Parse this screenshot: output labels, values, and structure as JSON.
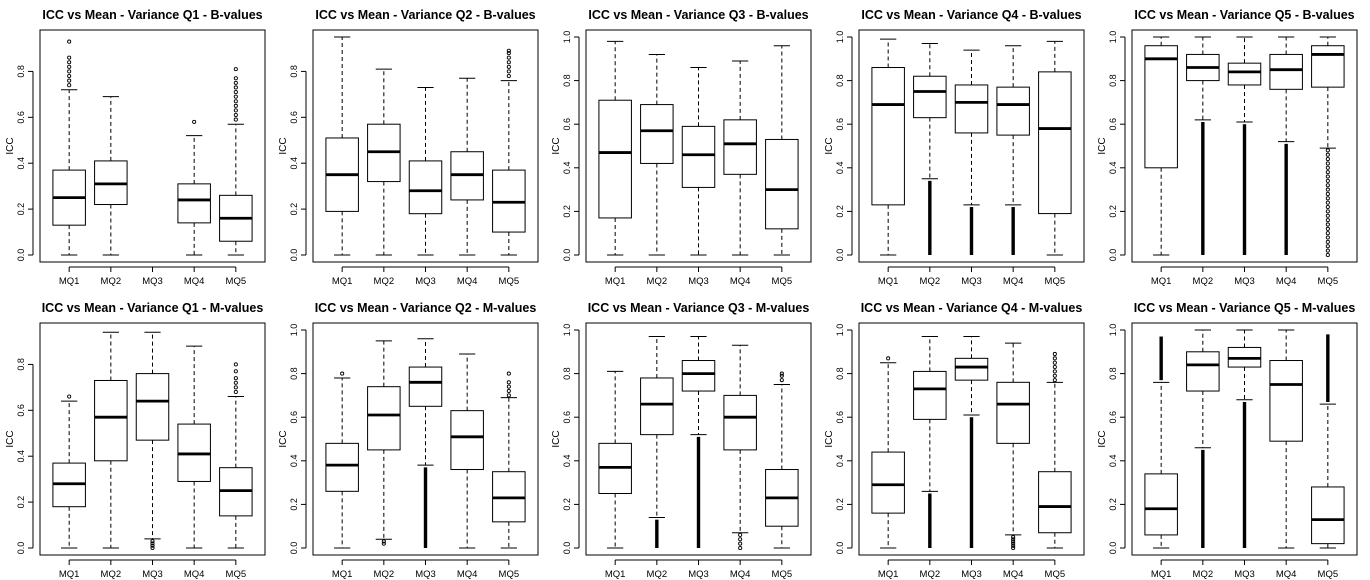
{
  "chart_data": [
    {
      "type": "boxplot",
      "title": "ICC vs Mean - Variance Q1 - B-values",
      "ylabel": "ICC",
      "ylim": [
        0,
        0.95
      ],
      "yticks": [
        0.0,
        0.2,
        0.4,
        0.6,
        0.8
      ],
      "categories": [
        "MQ1",
        "MQ2",
        "MQ3",
        "MQ4",
        "MQ5"
      ],
      "boxes": [
        {
          "label": "MQ1",
          "min": 0.0,
          "q1": 0.13,
          "median": 0.25,
          "q3": 0.37,
          "max": 0.72,
          "outliers": [
            0.74,
            0.76,
            0.78,
            0.8,
            0.82,
            0.84,
            0.86,
            0.93
          ]
        },
        {
          "label": "MQ2",
          "min": 0.0,
          "q1": 0.22,
          "median": 0.31,
          "q3": 0.41,
          "max": 0.69,
          "outliers": []
        },
        {
          "label": "MQ3",
          "empty": true
        },
        {
          "label": "MQ4",
          "min": 0.0,
          "q1": 0.14,
          "median": 0.24,
          "q3": 0.31,
          "max": 0.52,
          "outliers": [
            0.58
          ]
        },
        {
          "label": "MQ5",
          "min": 0.0,
          "q1": 0.06,
          "median": 0.16,
          "q3": 0.26,
          "max": 0.57,
          "outliers": [
            0.59,
            0.61,
            0.63,
            0.65,
            0.67,
            0.69,
            0.71,
            0.73,
            0.75,
            0.77,
            0.81
          ]
        }
      ]
    },
    {
      "type": "boxplot",
      "title": "ICC vs Mean - Variance Q2 - B-values",
      "ylabel": "ICC",
      "ylim": [
        0,
        0.95
      ],
      "yticks": [
        0.0,
        0.2,
        0.4,
        0.6,
        0.8
      ],
      "categories": [
        "MQ1",
        "MQ2",
        "MQ3",
        "MQ4",
        "MQ5"
      ],
      "boxes": [
        {
          "label": "MQ1",
          "min": 0.0,
          "q1": 0.19,
          "median": 0.35,
          "q3": 0.51,
          "max": 0.95,
          "outliers": []
        },
        {
          "label": "MQ2",
          "min": 0.0,
          "q1": 0.32,
          "median": 0.45,
          "q3": 0.57,
          "max": 0.81,
          "outliers": []
        },
        {
          "label": "MQ3",
          "min": 0.0,
          "q1": 0.18,
          "median": 0.28,
          "q3": 0.41,
          "max": 0.73,
          "outliers": []
        },
        {
          "label": "MQ4",
          "min": 0.0,
          "q1": 0.24,
          "median": 0.35,
          "q3": 0.45,
          "max": 0.77,
          "outliers": []
        },
        {
          "label": "MQ5",
          "min": 0.0,
          "q1": 0.1,
          "median": 0.23,
          "q3": 0.37,
          "max": 0.76,
          "outliers": [
            0.78,
            0.8,
            0.82,
            0.84,
            0.86,
            0.88,
            0.89
          ]
        }
      ]
    },
    {
      "type": "boxplot",
      "title": "ICC vs Mean - Variance Q3 - B-values",
      "ylabel": "ICC",
      "ylim": [
        0,
        1.0
      ],
      "yticks": [
        0.0,
        0.2,
        0.4,
        0.6,
        0.8,
        1.0
      ],
      "categories": [
        "MQ1",
        "MQ2",
        "MQ3",
        "MQ4",
        "MQ5"
      ],
      "boxes": [
        {
          "label": "MQ1",
          "min": 0.0,
          "q1": 0.17,
          "median": 0.47,
          "q3": 0.71,
          "max": 0.98,
          "outliers": []
        },
        {
          "label": "MQ2",
          "min": 0.0,
          "q1": 0.42,
          "median": 0.57,
          "q3": 0.69,
          "max": 0.92,
          "outliers": []
        },
        {
          "label": "MQ3",
          "min": 0.0,
          "q1": 0.31,
          "median": 0.46,
          "q3": 0.59,
          "max": 0.86,
          "outliers": []
        },
        {
          "label": "MQ4",
          "min": 0.0,
          "q1": 0.37,
          "median": 0.51,
          "q3": 0.62,
          "max": 0.89,
          "outliers": []
        },
        {
          "label": "MQ5",
          "min": 0.0,
          "q1": 0.12,
          "median": 0.3,
          "q3": 0.53,
          "max": 0.96,
          "outliers": []
        }
      ]
    },
    {
      "type": "boxplot",
      "title": "ICC vs Mean - Variance Q4 - B-values",
      "ylabel": "ICC",
      "ylim": [
        0,
        1.0
      ],
      "yticks": [
        0.0,
        0.2,
        0.4,
        0.6,
        0.8,
        1.0
      ],
      "categories": [
        "MQ1",
        "MQ2",
        "MQ3",
        "MQ4",
        "MQ5"
      ],
      "boxes": [
        {
          "label": "MQ1",
          "min": 0.0,
          "q1": 0.23,
          "median": 0.69,
          "q3": 0.86,
          "max": 0.99,
          "outliers": []
        },
        {
          "label": "MQ2",
          "min": 0.35,
          "q1": 0.63,
          "median": 0.75,
          "q3": 0.82,
          "max": 0.97,
          "outliers": [],
          "outlier_band": [
            0.0,
            0.34
          ]
        },
        {
          "label": "MQ3",
          "min": 0.23,
          "q1": 0.56,
          "median": 0.7,
          "q3": 0.78,
          "max": 0.94,
          "outliers": [],
          "outlier_band": [
            0.0,
            0.22
          ]
        },
        {
          "label": "MQ4",
          "min": 0.23,
          "q1": 0.55,
          "median": 0.69,
          "q3": 0.77,
          "max": 0.96,
          "outliers": [],
          "outlier_band": [
            0.0,
            0.22
          ]
        },
        {
          "label": "MQ5",
          "min": 0.0,
          "q1": 0.19,
          "median": 0.58,
          "q3": 0.84,
          "max": 0.98,
          "outliers": []
        }
      ]
    },
    {
      "type": "boxplot",
      "title": "ICC vs Mean - Variance Q5 - B-values",
      "ylabel": "ICC",
      "ylim": [
        0,
        1.0
      ],
      "yticks": [
        0.0,
        0.2,
        0.4,
        0.6,
        0.8,
        1.0
      ],
      "categories": [
        "MQ1",
        "MQ2",
        "MQ3",
        "MQ4",
        "MQ5"
      ],
      "boxes": [
        {
          "label": "MQ1",
          "min": 0.0,
          "q1": 0.4,
          "median": 0.9,
          "q3": 0.96,
          "max": 1.0,
          "outliers": []
        },
        {
          "label": "MQ2",
          "min": 0.62,
          "q1": 0.8,
          "median": 0.86,
          "q3": 0.92,
          "max": 1.0,
          "outliers": [],
          "outlier_band": [
            0.0,
            0.61
          ]
        },
        {
          "label": "MQ3",
          "min": 0.61,
          "q1": 0.78,
          "median": 0.84,
          "q3": 0.88,
          "max": 1.0,
          "outliers": [],
          "outlier_band": [
            0.0,
            0.6
          ]
        },
        {
          "label": "MQ4",
          "min": 0.52,
          "q1": 0.76,
          "median": 0.85,
          "q3": 0.92,
          "max": 1.0,
          "outliers": [],
          "outlier_band": [
            0.0,
            0.51
          ]
        },
        {
          "label": "MQ5",
          "min": 0.49,
          "q1": 0.77,
          "median": 0.92,
          "q3": 0.96,
          "max": 1.0,
          "outliers": [
            0.0,
            0.02,
            0.04,
            0.06,
            0.08,
            0.1,
            0.12,
            0.14,
            0.16,
            0.18,
            0.2,
            0.22,
            0.24,
            0.26,
            0.28,
            0.3,
            0.32,
            0.34,
            0.36,
            0.38,
            0.4,
            0.42,
            0.44,
            0.46,
            0.48
          ]
        }
      ]
    },
    {
      "type": "boxplot",
      "title": "ICC vs Mean - Variance Q1 - M-values",
      "ylabel": "ICC",
      "ylim": [
        0,
        0.95
      ],
      "yticks": [
        0.0,
        0.2,
        0.4,
        0.6,
        0.8
      ],
      "categories": [
        "MQ1",
        "MQ2",
        "MQ3",
        "MQ4",
        "MQ5"
      ],
      "boxes": [
        {
          "label": "MQ1",
          "min": 0.0,
          "q1": 0.18,
          "median": 0.28,
          "q3": 0.37,
          "max": 0.64,
          "outliers": [
            0.66
          ]
        },
        {
          "label": "MQ2",
          "min": 0.0,
          "q1": 0.38,
          "median": 0.57,
          "q3": 0.73,
          "max": 0.94,
          "outliers": []
        },
        {
          "label": "MQ3",
          "min": 0.04,
          "q1": 0.47,
          "median": 0.64,
          "q3": 0.76,
          "max": 0.94,
          "outliers": [
            0.0,
            0.01,
            0.02,
            0.03
          ]
        },
        {
          "label": "MQ4",
          "min": 0.0,
          "q1": 0.29,
          "median": 0.41,
          "q3": 0.54,
          "max": 0.88,
          "outliers": []
        },
        {
          "label": "MQ5",
          "min": 0.0,
          "q1": 0.14,
          "median": 0.25,
          "q3": 0.35,
          "max": 0.66,
          "outliers": [
            0.68,
            0.7,
            0.72,
            0.74,
            0.77,
            0.8
          ]
        }
      ]
    },
    {
      "type": "boxplot",
      "title": "ICC vs Mean - Variance Q2 - M-values",
      "ylabel": "ICC",
      "ylim": [
        0,
        1.0
      ],
      "yticks": [
        0.0,
        0.2,
        0.4,
        0.6,
        0.8,
        1.0
      ],
      "categories": [
        "MQ1",
        "MQ2",
        "MQ3",
        "MQ4",
        "MQ5"
      ],
      "boxes": [
        {
          "label": "MQ1",
          "min": 0.0,
          "q1": 0.26,
          "median": 0.38,
          "q3": 0.48,
          "max": 0.78,
          "outliers": [
            0.8
          ]
        },
        {
          "label": "MQ2",
          "min": 0.04,
          "q1": 0.45,
          "median": 0.61,
          "q3": 0.74,
          "max": 0.95,
          "outliers": [
            0.02,
            0.03
          ]
        },
        {
          "label": "MQ3",
          "min": 0.38,
          "q1": 0.65,
          "median": 0.76,
          "q3": 0.83,
          "max": 0.96,
          "outliers": [],
          "outlier_band": [
            0.0,
            0.37
          ]
        },
        {
          "label": "MQ4",
          "min": 0.0,
          "q1": 0.36,
          "median": 0.51,
          "q3": 0.63,
          "max": 0.89,
          "outliers": []
        },
        {
          "label": "MQ5",
          "min": 0.0,
          "q1": 0.12,
          "median": 0.23,
          "q3": 0.35,
          "max": 0.69,
          "outliers": [
            0.7,
            0.72,
            0.74,
            0.76,
            0.8
          ]
        }
      ]
    },
    {
      "type": "boxplot",
      "title": "ICC vs Mean - Variance Q3 - M-values",
      "ylabel": "ICC",
      "ylim": [
        0,
        1.0
      ],
      "yticks": [
        0.0,
        0.2,
        0.4,
        0.6,
        0.8,
        1.0
      ],
      "categories": [
        "MQ1",
        "MQ2",
        "MQ3",
        "MQ4",
        "MQ5"
      ],
      "boxes": [
        {
          "label": "MQ1",
          "min": 0.0,
          "q1": 0.25,
          "median": 0.37,
          "q3": 0.48,
          "max": 0.81,
          "outliers": []
        },
        {
          "label": "MQ2",
          "min": 0.14,
          "q1": 0.52,
          "median": 0.66,
          "q3": 0.78,
          "max": 0.97,
          "outliers": [],
          "outlier_band": [
            0.0,
            0.13
          ]
        },
        {
          "label": "MQ3",
          "min": 0.52,
          "q1": 0.72,
          "median": 0.8,
          "q3": 0.86,
          "max": 0.97,
          "outliers": [],
          "outlier_band": [
            0.0,
            0.51
          ]
        },
        {
          "label": "MQ4",
          "min": 0.07,
          "q1": 0.45,
          "median": 0.6,
          "q3": 0.7,
          "max": 0.93,
          "outliers": [
            0.0,
            0.02,
            0.04,
            0.06
          ]
        },
        {
          "label": "MQ5",
          "min": 0.0,
          "q1": 0.1,
          "median": 0.23,
          "q3": 0.36,
          "max": 0.75,
          "outliers": [
            0.77,
            0.79,
            0.8
          ]
        }
      ]
    },
    {
      "type": "boxplot",
      "title": "ICC vs Mean - Variance Q4 - M-values",
      "ylabel": "ICC",
      "ylim": [
        0,
        1.0
      ],
      "yticks": [
        0.0,
        0.2,
        0.4,
        0.6,
        0.8,
        1.0
      ],
      "categories": [
        "MQ1",
        "MQ2",
        "MQ3",
        "MQ4",
        "MQ5"
      ],
      "boxes": [
        {
          "label": "MQ1",
          "min": 0.0,
          "q1": 0.16,
          "median": 0.29,
          "q3": 0.44,
          "max": 0.85,
          "outliers": [
            0.87
          ]
        },
        {
          "label": "MQ2",
          "min": 0.26,
          "q1": 0.59,
          "median": 0.73,
          "q3": 0.81,
          "max": 0.97,
          "outliers": [],
          "outlier_band": [
            0.0,
            0.25
          ]
        },
        {
          "label": "MQ3",
          "min": 0.61,
          "q1": 0.77,
          "median": 0.83,
          "q3": 0.87,
          "max": 0.97,
          "outliers": [],
          "outlier_band": [
            0.0,
            0.6
          ]
        },
        {
          "label": "MQ4",
          "min": 0.06,
          "q1": 0.48,
          "median": 0.66,
          "q3": 0.76,
          "max": 0.94,
          "outliers": [
            0.0,
            0.01,
            0.02,
            0.03,
            0.04,
            0.05
          ]
        },
        {
          "label": "MQ5",
          "min": 0.0,
          "q1": 0.07,
          "median": 0.19,
          "q3": 0.35,
          "max": 0.76,
          "outliers": [
            0.77,
            0.79,
            0.81,
            0.83,
            0.85,
            0.87,
            0.89
          ]
        }
      ]
    },
    {
      "type": "boxplot",
      "title": "ICC vs Mean - Variance Q5 - M-values",
      "ylabel": "ICC",
      "ylim": [
        0,
        1.0
      ],
      "yticks": [
        0.0,
        0.2,
        0.4,
        0.6,
        0.8,
        1.0
      ],
      "categories": [
        "MQ1",
        "MQ2",
        "MQ3",
        "MQ4",
        "MQ5"
      ],
      "boxes": [
        {
          "label": "MQ1",
          "min": 0.0,
          "q1": 0.06,
          "median": 0.18,
          "q3": 0.34,
          "max": 0.76,
          "outliers": [],
          "outlier_band_high": [
            0.77,
            0.97
          ]
        },
        {
          "label": "MQ2",
          "min": 0.46,
          "q1": 0.72,
          "median": 0.84,
          "q3": 0.9,
          "max": 1.0,
          "outliers": [],
          "outlier_band": [
            0.0,
            0.45
          ]
        },
        {
          "label": "MQ3",
          "min": 0.68,
          "q1": 0.83,
          "median": 0.87,
          "q3": 0.92,
          "max": 1.0,
          "outliers": [],
          "outlier_band": [
            0.0,
            0.67
          ]
        },
        {
          "label": "MQ4",
          "min": 0.0,
          "q1": 0.49,
          "median": 0.75,
          "q3": 0.86,
          "max": 1.0,
          "outliers": []
        },
        {
          "label": "MQ5",
          "min": 0.0,
          "q1": 0.02,
          "median": 0.13,
          "q3": 0.28,
          "max": 0.66,
          "outliers": [],
          "outlier_band_high": [
            0.67,
            0.98
          ]
        }
      ]
    }
  ]
}
